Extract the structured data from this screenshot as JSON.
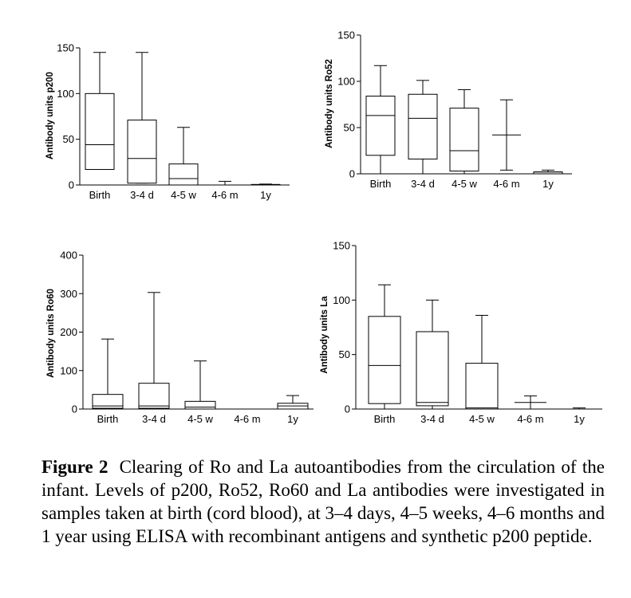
{
  "colors": {
    "line": "#000000",
    "box_fill": "#ffffff",
    "background": "#ffffff"
  },
  "chart_data": [
    {
      "type": "boxplot",
      "ylabel": "Antibody units p200",
      "ylim": [
        0,
        150
      ],
      "yticks": [
        0,
        50,
        100,
        150
      ],
      "categories": [
        "Birth",
        "3-4 d",
        "4-5 w",
        "4-6 m",
        "1y"
      ],
      "boxes": [
        {
          "min": 17,
          "q1": 17,
          "median": 44,
          "q3": 100,
          "max": 145
        },
        {
          "min": 2,
          "q1": 2,
          "median": 29,
          "q3": 71,
          "max": 145
        },
        {
          "min": 0,
          "q1": 0,
          "median": 7,
          "q3": 23,
          "max": 63
        },
        {
          "min": 0,
          "q1": 0,
          "median": 0,
          "q3": 0,
          "max": 4
        },
        {
          "min": 0,
          "q1": 0,
          "median": 0.5,
          "q3": 0.5,
          "max": 1
        }
      ]
    },
    {
      "type": "boxplot",
      "ylabel": "Antibody units Ro52",
      "ylim": [
        0,
        150
      ],
      "yticks": [
        0,
        50,
        100,
        150
      ],
      "categories": [
        "Birth",
        "3-4 d",
        "4-5  w",
        "4-6 m",
        "1y"
      ],
      "boxes": [
        {
          "min": 0,
          "q1": 20,
          "median": 63,
          "q3": 84,
          "max": 117
        },
        {
          "min": 0,
          "q1": 16,
          "median": 60,
          "q3": 86,
          "max": 101
        },
        {
          "min": 0,
          "q1": 3,
          "median": 25,
          "q3": 71,
          "max": 91
        },
        {
          "min": 4,
          "q1": 42,
          "median": 42,
          "q3": 42,
          "max": 80
        },
        {
          "min": 0,
          "q1": 0,
          "median": 2,
          "q3": 2,
          "max": 4
        }
      ]
    },
    {
      "type": "boxplot",
      "ylabel": "Antibody units Ro60",
      "ylim": [
        0,
        400
      ],
      "yticks": [
        0,
        100,
        200,
        300,
        400
      ],
      "categories": [
        "Birth",
        "3-4 d",
        "4-5 w",
        "4-6 m",
        "1y"
      ],
      "boxes": [
        {
          "min": 0,
          "q1": 2,
          "median": 8,
          "q3": 38,
          "max": 182
        },
        {
          "min": 0,
          "q1": 2,
          "median": 8,
          "q3": 67,
          "max": 303
        },
        {
          "min": 0,
          "q1": 0,
          "median": 5,
          "q3": 20,
          "max": 125
        },
        {
          "min": 0,
          "q1": 0,
          "median": 0,
          "q3": 0,
          "max": 0
        },
        {
          "min": 0,
          "q1": 0,
          "median": 8,
          "q3": 15,
          "max": 35
        }
      ]
    },
    {
      "type": "boxplot",
      "ylabel": "Antibody units La",
      "ylim": [
        0,
        150
      ],
      "yticks": [
        0,
        50,
        100,
        150
      ],
      "categories": [
        "Birth",
        "3-4 d",
        "4-5 w",
        "4-6 m",
        "1y"
      ],
      "boxes": [
        {
          "min": 0,
          "q1": 5,
          "median": 40,
          "q3": 85,
          "max": 114
        },
        {
          "min": 0,
          "q1": 3,
          "median": 6,
          "q3": 71,
          "max": 100
        },
        {
          "min": 0,
          "q1": 0,
          "median": 1,
          "q3": 42,
          "max": 86
        },
        {
          "min": 0,
          "q1": 6,
          "median": 6,
          "q3": 6,
          "max": 12
        },
        {
          "min": 0,
          "q1": 0,
          "median": 0,
          "q3": 0,
          "max": 1
        }
      ]
    }
  ],
  "caption": {
    "lead": "Figure 2",
    "text": "Clearing of Ro and La autoantibodies from the circulation of the infant. Levels of p200, Ro52, Ro60 and La antibodies were investigated in samples taken at birth (cord blood), at 3–4 days, 4–5 weeks, 4–6 months and 1 year using ELISA with recombinant antigens and synthetic p200 peptide."
  }
}
